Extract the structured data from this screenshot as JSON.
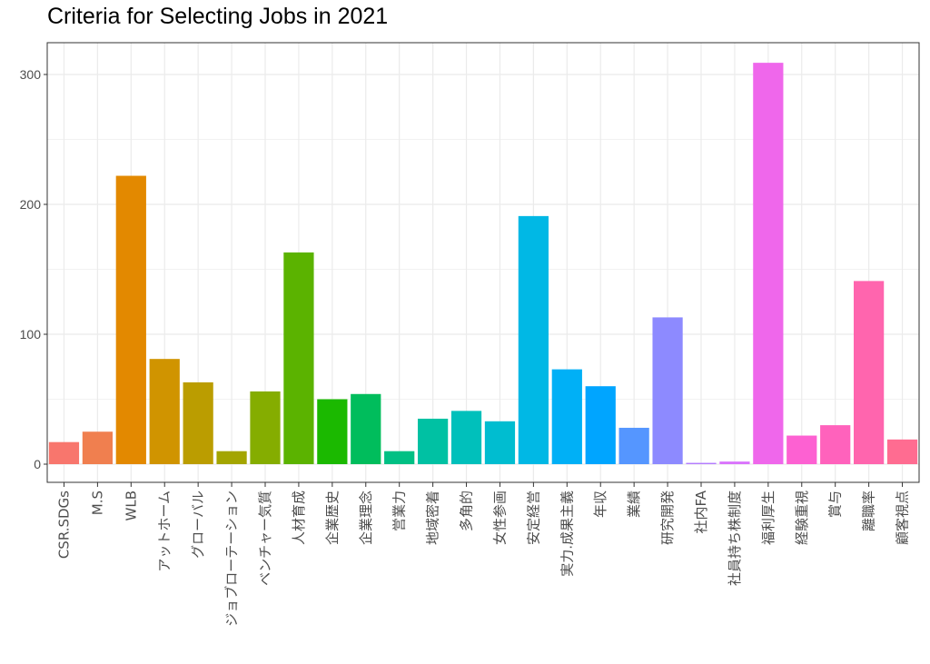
{
  "chart_data": {
    "type": "bar",
    "title": "Criteria for Selecting Jobs in 2021",
    "xlabel": "",
    "ylabel": "",
    "ylim": [
      0,
      325
    ],
    "yticks": [
      0,
      100,
      200,
      300
    ],
    "grid": true,
    "legend": "none",
    "categories": [
      "CSR.SDGs",
      "M.S",
      "WLB",
      "アットホーム",
      "グローバル",
      "ジョブローテーション",
      "ベンチャー気質",
      "人材育成",
      "企業歴史",
      "企業理念",
      "営業力",
      "地域密着",
      "多角的",
      "女性参画",
      "安定経営",
      "実力.成果主義",
      "年収",
      "業績",
      "研究開発",
      "社内FA",
      "社員持ち株制度",
      "福利厚生",
      "経験重視",
      "賞与",
      "離職率",
      "顧客視点"
    ],
    "values": [
      17,
      25,
      222,
      81,
      63,
      10,
      56,
      163,
      50,
      54,
      10,
      35,
      41,
      33,
      191,
      73,
      60,
      28,
      113,
      1,
      2,
      309,
      22,
      30,
      141,
      19
    ],
    "colors": [
      "#F8766D",
      "#F07F4F",
      "#E38900",
      "#D09400",
      "#BB9D00",
      "#A3A500",
      "#85AD00",
      "#5BB300",
      "#1BB900",
      "#00BD5C",
      "#00C084",
      "#00C1A3",
      "#00C0BB",
      "#00BDD0",
      "#00B8E5",
      "#00B0F6",
      "#00A5FF",
      "#5596FF",
      "#8D8AFF",
      "#B47CFF",
      "#D973FC",
      "#EF67EB",
      "#FD61D2",
      "#FF62BC",
      "#FF65AE",
      "#FF6C91"
    ]
  }
}
